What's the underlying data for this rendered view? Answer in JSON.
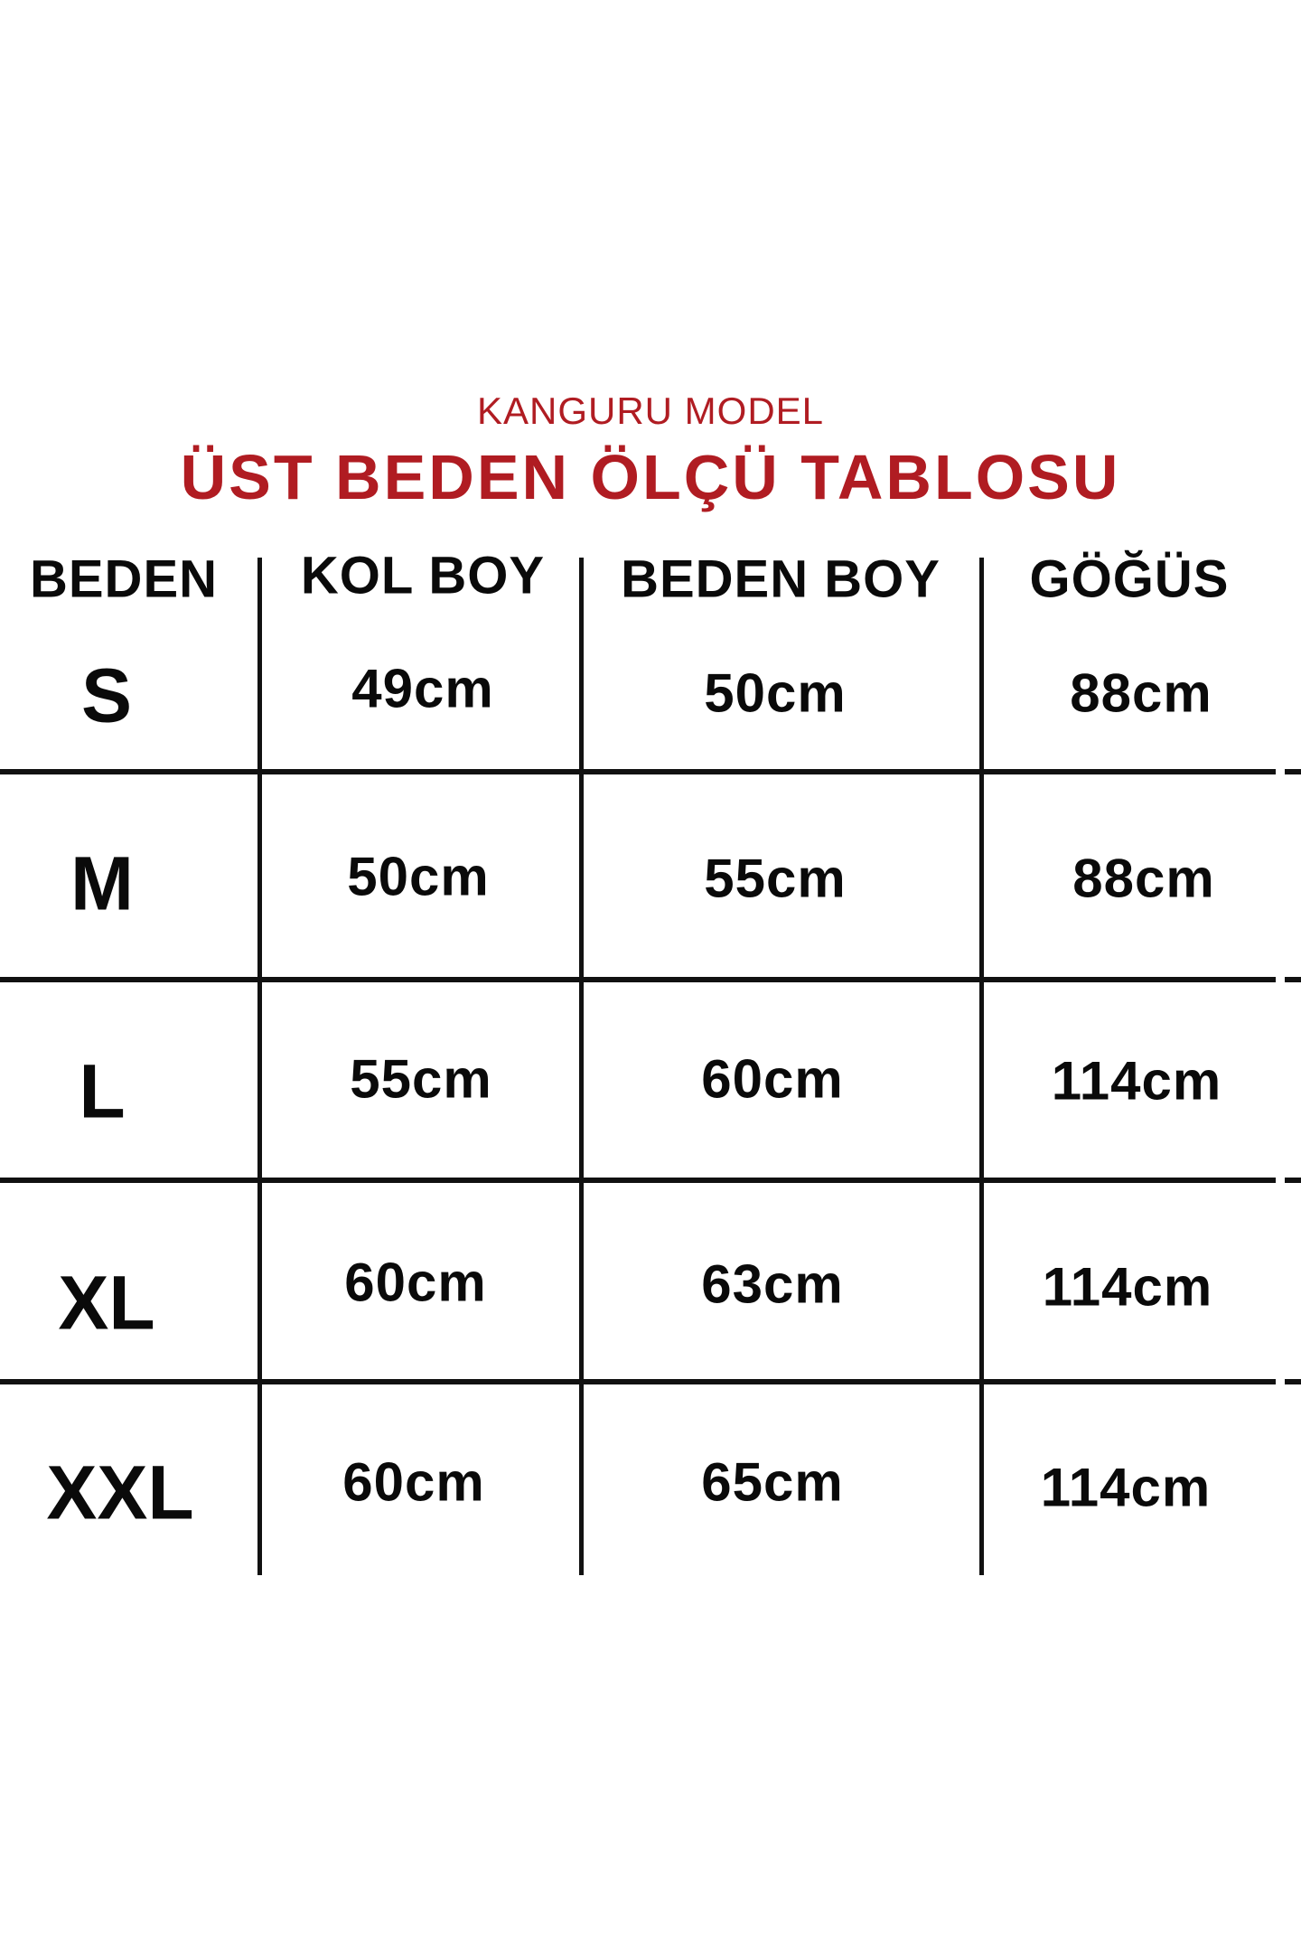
{
  "brand": "KANGURU MODEL",
  "title": "ÜST BEDEN ÖLÇÜ TABLOSU",
  "colors": {
    "title": "#b01c22",
    "text": "#0a0a0a"
  },
  "table": {
    "headers": [
      "BEDEN",
      "KOL BOY",
      "BEDEN BOY",
      "GÖĞÜS"
    ],
    "rows": [
      {
        "size": "S",
        "kol_boy": "49cm",
        "beden_boy": "50cm",
        "gogus": "88cm"
      },
      {
        "size": "M",
        "kol_boy": "50cm",
        "beden_boy": "55cm",
        "gogus": "88cm"
      },
      {
        "size": "L",
        "kol_boy": "55cm",
        "beden_boy": "60cm",
        "gogus": "114cm"
      },
      {
        "size": "XL",
        "kol_boy": "60cm",
        "beden_boy": "63cm",
        "gogus": "114cm"
      },
      {
        "size": "XXL",
        "kol_boy": "60cm",
        "beden_boy": "65cm",
        "gogus": "114cm"
      }
    ]
  }
}
